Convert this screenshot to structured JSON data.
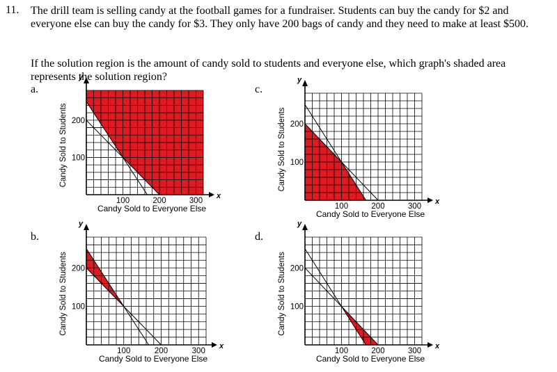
{
  "question": {
    "number": "11.",
    "text1": "The drill team is selling candy at the football games for a fundraiser. Students can buy the candy for $2 and everyone else can buy the candy for $3. They only have 200 bags of candy and they need to make at least $500.",
    "text2": "If the solution region is the amount of candy sold to students and everyone else, which graph's shaded area represents the solution region?"
  },
  "options": [
    {
      "letter": "a."
    },
    {
      "letter": "b."
    },
    {
      "letter": "c."
    },
    {
      "letter": "d."
    }
  ],
  "colors": {
    "shade": "#dd1b22",
    "ink": "#000000"
  },
  "chart_data": [
    {
      "type": "area",
      "option": "a.",
      "xlabel": "Candy Sold to Everyone Else",
      "ylabel": "Candy Sold to Students",
      "x_axis_letter": "x",
      "y_axis_letter": "y",
      "xticks": [
        "100",
        "200",
        "300"
      ],
      "yticks": [
        "100",
        "200"
      ],
      "xlim": [
        0,
        320
      ],
      "ylim": [
        0,
        280
      ],
      "lines": [
        {
          "name": "",
          "x_intercept": 200,
          "y_intercept": 200
        },
        {
          "name": "",
          "x_intercept": 166.7,
          "y_intercept": 250
        }
      ],
      "shaded_region": [
        [
          0,
          250
        ],
        [
          0,
          280
        ],
        [
          320,
          280
        ],
        [
          320,
          0
        ],
        [
          200,
          0
        ],
        [
          100,
          100
        ]
      ]
    },
    {
      "type": "area",
      "option": "b.",
      "xlabel": "Candy Sold to Everyone Else",
      "ylabel": "Candy Sold to Students",
      "x_axis_letter": "x",
      "y_axis_letter": "y",
      "xticks": [
        "100",
        "200",
        "300"
      ],
      "yticks": [
        "100",
        "200"
      ],
      "xlim": [
        0,
        320
      ],
      "ylim": [
        0,
        280
      ],
      "lines": [
        {
          "name": "",
          "x_intercept": 200,
          "y_intercept": 200
        },
        {
          "name": "",
          "x_intercept": 166.7,
          "y_intercept": 250
        }
      ],
      "shaded_region": [
        [
          0,
          200
        ],
        [
          0,
          250
        ],
        [
          100,
          100
        ]
      ]
    },
    {
      "type": "area",
      "option": "c.",
      "xlabel": "Candy Sold to Everyone Else",
      "ylabel": "Candy Sold to Students",
      "x_axis_letter": "x",
      "y_axis_letter": "y",
      "xticks": [
        "100",
        "200",
        "300"
      ],
      "yticks": [
        "100",
        "200"
      ],
      "xlim": [
        0,
        320
      ],
      "ylim": [
        0,
        280
      ],
      "lines": [
        {
          "name": "",
          "x_intercept": 200,
          "y_intercept": 200
        },
        {
          "name": "",
          "x_intercept": 166.7,
          "y_intercept": 250
        }
      ],
      "shaded_region": [
        [
          0,
          0
        ],
        [
          0,
          200
        ],
        [
          100,
          100
        ],
        [
          166.7,
          0
        ]
      ]
    },
    {
      "type": "area",
      "option": "d.",
      "xlabel": "Candy Sold to Everyone Else",
      "ylabel": "Candy Sold to Students",
      "x_axis_letter": "x",
      "y_axis_letter": "y",
      "xticks": [
        "100",
        "200",
        "300"
      ],
      "yticks": [
        "100",
        "200"
      ],
      "xlim": [
        0,
        320
      ],
      "ylim": [
        0,
        280
      ],
      "lines": [
        {
          "name": "",
          "x_intercept": 200,
          "y_intercept": 200
        },
        {
          "name": "",
          "x_intercept": 166.7,
          "y_intercept": 250
        }
      ],
      "shaded_region": [
        [
          100,
          100
        ],
        [
          166.7,
          0
        ],
        [
          200,
          0
        ]
      ]
    }
  ]
}
